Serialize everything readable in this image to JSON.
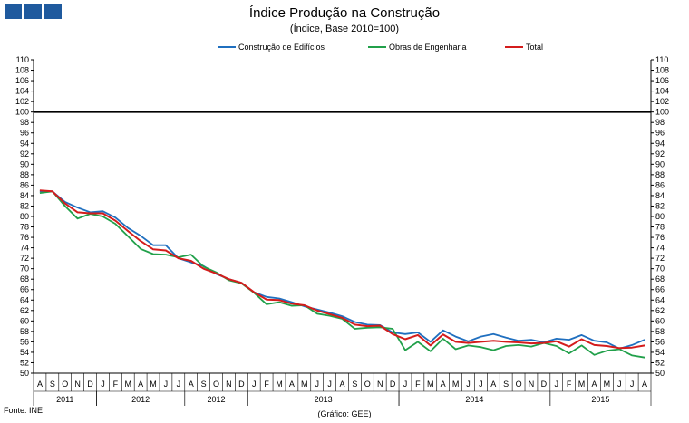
{
  "header": {
    "logo_icon": "three-blue-squares-logo",
    "title": "Índice Produção na Construção",
    "subtitle": "(Índice, Base 2010=100)"
  },
  "footer": {
    "source": "Fonte: INE",
    "credit": "(Gráfico: GEE)"
  },
  "chart_data": {
    "type": "line",
    "title": "Índice Produção na Construção",
    "subtitle": "(Índice, Base 2010=100)",
    "ylim": [
      50,
      110
    ],
    "ytick_step": 2,
    "reference_line": 100,
    "grid": false,
    "legend_position": "top",
    "x": [
      "A",
      "S",
      "O",
      "N",
      "D",
      "J",
      "F",
      "M",
      "A",
      "M",
      "J",
      "J",
      "A",
      "S",
      "O",
      "N",
      "D",
      "J",
      "F",
      "M",
      "A",
      "M",
      "J",
      "J",
      "A",
      "S",
      "O",
      "N",
      "D",
      "J",
      "F",
      "M",
      "A",
      "M",
      "J",
      "J",
      "A",
      "S",
      "O",
      "N",
      "D",
      "J",
      "F",
      "M",
      "A",
      "M",
      "J",
      "J",
      "A"
    ],
    "year_groups": [
      {
        "label": "2011",
        "start": 0,
        "end": 4
      },
      {
        "label": "2012",
        "start": 5,
        "end": 11
      },
      {
        "label": "2012",
        "start": 12,
        "end": 16
      },
      {
        "label": "2013",
        "start": 17,
        "end": 28
      },
      {
        "label": "2014",
        "start": 29,
        "end": 40
      },
      {
        "label": "2015",
        "start": 41,
        "end": 48
      }
    ],
    "series": [
      {
        "name": "Construção de Edifícios",
        "color": "#1f6fbf",
        "values": [
          84.8,
          84.8,
          82.8,
          81.7,
          80.8,
          81.0,
          79.8,
          77.8,
          76.3,
          74.5,
          74.5,
          72.0,
          71.2,
          70.5,
          69.0,
          68.0,
          67.3,
          65.5,
          64.6,
          64.3,
          63.6,
          62.8,
          62.2,
          61.6,
          60.9,
          59.8,
          59.3,
          59.2,
          57.8,
          57.5,
          57.8,
          56.0,
          58.2,
          57.0,
          56.1,
          57.0,
          57.5,
          56.8,
          56.2,
          56.4,
          55.9,
          56.6,
          56.4,
          57.3,
          56.2,
          55.9,
          54.7,
          55.4,
          56.4
        ]
      },
      {
        "name": "Obras de Engenharia",
        "color": "#21a04a",
        "values": [
          84.5,
          84.8,
          82.0,
          79.6,
          80.5,
          80.0,
          78.6,
          76.2,
          73.8,
          72.8,
          72.7,
          72.2,
          72.7,
          70.4,
          69.3,
          67.8,
          67.2,
          65.4,
          63.2,
          63.6,
          62.9,
          63.0,
          61.4,
          61.0,
          60.4,
          58.5,
          58.7,
          58.8,
          58.5,
          54.4,
          56.0,
          54.2,
          56.6,
          54.6,
          55.3,
          55.0,
          54.4,
          55.2,
          55.4,
          55.1,
          55.8,
          55.2,
          53.8,
          55.3,
          53.5,
          54.3,
          54.6,
          53.4,
          53.0
        ]
      },
      {
        "name": "Total",
        "color": "#d41c1c",
        "values": [
          85.0,
          84.8,
          82.5,
          80.8,
          80.6,
          80.6,
          79.2,
          77.2,
          75.3,
          73.7,
          73.5,
          72.0,
          71.5,
          70.0,
          69.1,
          68.0,
          67.3,
          65.5,
          64.1,
          64.0,
          63.3,
          63.0,
          62.0,
          61.3,
          60.6,
          59.3,
          59.0,
          59.1,
          57.5,
          56.5,
          57.3,
          55.3,
          57.4,
          56.0,
          55.8,
          56.0,
          56.2,
          56.0,
          55.9,
          55.7,
          55.8,
          56.1,
          55.1,
          56.5,
          55.4,
          55.2,
          54.8,
          54.9,
          55.3
        ]
      }
    ]
  }
}
